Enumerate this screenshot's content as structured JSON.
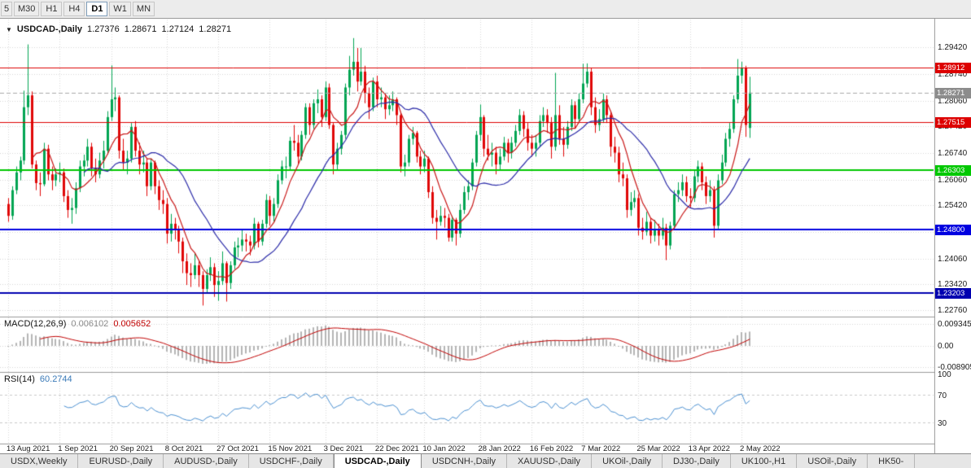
{
  "toolbar": {
    "timeframes": [
      "5",
      "M30",
      "H1",
      "H4",
      "D1",
      "W1",
      "MN"
    ],
    "active": "D1"
  },
  "chart_data": {
    "type": "candlestick",
    "title": "USDCAD-,Daily",
    "ohlc_header": {
      "open": "1.27376",
      "high": "1.28671",
      "low": "1.27124",
      "close": "1.28271"
    },
    "y_range": {
      "top": 1.3012,
      "bottom": 1.2262
    },
    "price_axis": [
      {
        "text": "1.29420",
        "v": 1.2942
      },
      {
        "text": "1.28740",
        "v": 1.2874
      },
      {
        "text": "1.28060",
        "v": 1.2806
      },
      {
        "text": "1.27420",
        "v": 1.2742
      },
      {
        "text": "1.26740",
        "v": 1.2674
      },
      {
        "text": "1.26060",
        "v": 1.2606
      },
      {
        "text": "1.25420",
        "v": 1.2542
      },
      {
        "text": "1.24740",
        "v": 1.2474
      },
      {
        "text": "1.24060",
        "v": 1.2406
      },
      {
        "text": "1.23420",
        "v": 1.2342
      },
      {
        "text": "1.22760",
        "v": 1.2276
      }
    ],
    "x_labels": [
      {
        "text": "13 Aug 2021",
        "i": 0
      },
      {
        "text": "1 Sep 2021",
        "i": 13
      },
      {
        "text": "20 Sep 2021",
        "i": 26
      },
      {
        "text": "8 Oct 2021",
        "i": 40
      },
      {
        "text": "27 Oct 2021",
        "i": 53
      },
      {
        "text": "15 Nov 2021",
        "i": 66
      },
      {
        "text": "3 Dec 2021",
        "i": 80
      },
      {
        "text": "22 Dec 2021",
        "i": 93
      },
      {
        "text": "10 Jan 2022",
        "i": 105
      },
      {
        "text": "28 Jan 2022",
        "i": 119
      },
      {
        "text": "16 Feb 2022",
        "i": 132
      },
      {
        "text": "7 Mar 2022",
        "i": 145
      },
      {
        "text": "25 Mar 2022",
        "i": 159
      },
      {
        "text": "13 Apr 2022",
        "i": 172
      },
      {
        "text": "2 May 2022",
        "i": 185
      }
    ],
    "horizontal_levels": [
      {
        "price": 1.28912,
        "label": "1.28912",
        "color": "#dd0000",
        "width": 1
      },
      {
        "price": 1.27515,
        "label": "1.27515",
        "color": "#dd0000",
        "width": 1
      },
      {
        "price": 1.26303,
        "label": "1.26303",
        "color": "#00c800",
        "width": 2
      },
      {
        "price": 1.248,
        "label": "1.24800",
        "color": "#0000e0",
        "width": 2
      },
      {
        "price": 1.23203,
        "label": "1.23203",
        "color": "#0000b0",
        "width": 2
      }
    ],
    "current_price": {
      "v": 1.28271,
      "label": "1.28271",
      "color": "#8c8c8c"
    },
    "moving_averages": [
      {
        "period": 7,
        "color": "#c81616"
      },
      {
        "period": 20,
        "color": "#2b2ba8"
      }
    ],
    "colors": {
      "bull": "#00a452",
      "bear": "#e00707",
      "grid": "#d6d6d6",
      "axis_line": "#9a9a9a"
    },
    "candles": [
      [
        1.2545,
        1.256,
        1.25,
        1.2515
      ],
      [
        1.2515,
        1.259,
        1.2505,
        1.258
      ],
      [
        1.258,
        1.264,
        1.257,
        1.2625
      ],
      [
        1.2625,
        1.2665,
        1.2605,
        1.2655
      ],
      [
        1.2655,
        1.2832,
        1.2645,
        1.279
      ],
      [
        1.279,
        1.2949,
        1.277,
        1.282
      ],
      [
        1.282,
        1.283,
        1.2635,
        1.2645
      ],
      [
        1.2645,
        1.2655,
        1.258,
        1.2598
      ],
      [
        1.2598,
        1.2625,
        1.2565,
        1.2595
      ],
      [
        1.2595,
        1.27,
        1.259,
        1.2685
      ],
      [
        1.2685,
        1.2695,
        1.2605,
        1.262
      ],
      [
        1.262,
        1.264,
        1.258,
        1.2605
      ],
      [
        1.2605,
        1.2635,
        1.259,
        1.262
      ],
      [
        1.262,
        1.265,
        1.26,
        1.2625
      ],
      [
        1.2625,
        1.2635,
        1.255,
        1.2565
      ],
      [
        1.2565,
        1.258,
        1.251,
        1.253
      ],
      [
        1.253,
        1.256,
        1.2495,
        1.2535
      ],
      [
        1.2535,
        1.26,
        1.252,
        1.2585
      ],
      [
        1.2585,
        1.2655,
        1.2575,
        1.264
      ],
      [
        1.264,
        1.267,
        1.2615,
        1.2655
      ],
      [
        1.2655,
        1.271,
        1.264,
        1.269
      ],
      [
        1.269,
        1.27,
        1.2615,
        1.2635
      ],
      [
        1.2635,
        1.266,
        1.26,
        1.262
      ],
      [
        1.262,
        1.2675,
        1.261,
        1.2655
      ],
      [
        1.2655,
        1.2705,
        1.2635,
        1.268
      ],
      [
        1.268,
        1.278,
        1.267,
        1.2765
      ],
      [
        1.2765,
        1.2896,
        1.2755,
        1.281
      ],
      [
        1.281,
        1.284,
        1.278,
        1.2815
      ],
      [
        1.2815,
        1.282,
        1.266,
        1.268
      ],
      [
        1.268,
        1.271,
        1.263,
        1.265
      ],
      [
        1.265,
        1.268,
        1.262,
        1.266
      ],
      [
        1.266,
        1.275,
        1.265,
        1.274
      ],
      [
        1.274,
        1.2755,
        1.2665,
        1.268
      ],
      [
        1.268,
        1.27,
        1.262,
        1.2645
      ],
      [
        1.2645,
        1.268,
        1.2625,
        1.265
      ],
      [
        1.265,
        1.266,
        1.2565,
        1.259
      ],
      [
        1.259,
        1.266,
        1.258,
        1.265
      ],
      [
        1.265,
        1.2655,
        1.257,
        1.259
      ],
      [
        1.259,
        1.2605,
        1.253,
        1.2555
      ],
      [
        1.2555,
        1.258,
        1.252,
        1.2545
      ],
      [
        1.2545,
        1.256,
        1.2445,
        1.247
      ],
      [
        1.247,
        1.252,
        1.245,
        1.2495
      ],
      [
        1.2495,
        1.251,
        1.2455,
        1.248
      ],
      [
        1.248,
        1.249,
        1.242,
        1.245
      ],
      [
        1.245,
        1.246,
        1.237,
        1.24
      ],
      [
        1.24,
        1.242,
        1.234,
        1.237
      ],
      [
        1.237,
        1.2395,
        1.2335,
        1.2365
      ],
      [
        1.2365,
        1.242,
        1.2355,
        1.239
      ],
      [
        1.239,
        1.24,
        1.2335,
        1.2365
      ],
      [
        1.2365,
        1.2375,
        1.2288,
        1.233
      ],
      [
        1.233,
        1.238,
        1.232,
        1.2365
      ],
      [
        1.2365,
        1.241,
        1.235,
        1.2385
      ],
      [
        1.2385,
        1.2395,
        1.231,
        1.234
      ],
      [
        1.234,
        1.2375,
        1.23,
        1.235
      ],
      [
        1.235,
        1.2425,
        1.234,
        1.2395
      ],
      [
        1.2395,
        1.24,
        1.2298,
        1.2345
      ],
      [
        1.2345,
        1.24,
        1.233,
        1.239
      ],
      [
        1.239,
        1.245,
        1.238,
        1.2435
      ],
      [
        1.2435,
        1.246,
        1.241,
        1.244
      ],
      [
        1.244,
        1.248,
        1.2425,
        1.2455
      ],
      [
        1.2455,
        1.247,
        1.2425,
        1.245
      ],
      [
        1.245,
        1.2465,
        1.2415,
        1.244
      ],
      [
        1.244,
        1.251,
        1.243,
        1.2495
      ],
      [
        1.2495,
        1.25,
        1.2435,
        1.245
      ],
      [
        1.245,
        1.2505,
        1.244,
        1.2495
      ],
      [
        1.2495,
        1.257,
        1.2485,
        1.2555
      ],
      [
        1.2555,
        1.2565,
        1.249,
        1.2515
      ],
      [
        1.2515,
        1.256,
        1.25,
        1.2545
      ],
      [
        1.2545,
        1.262,
        1.2535,
        1.2605
      ],
      [
        1.2605,
        1.2655,
        1.2595,
        1.264
      ],
      [
        1.264,
        1.2665,
        1.261,
        1.264
      ],
      [
        1.264,
        1.2715,
        1.263,
        1.2705
      ],
      [
        1.2705,
        1.2745,
        1.268,
        1.27
      ],
      [
        1.27,
        1.272,
        1.2645,
        1.2665
      ],
      [
        1.2665,
        1.273,
        1.2655,
        1.272
      ],
      [
        1.272,
        1.28,
        1.271,
        1.279
      ],
      [
        1.279,
        1.28,
        1.272,
        1.2745
      ],
      [
        1.2745,
        1.281,
        1.2735,
        1.28
      ],
      [
        1.28,
        1.2835,
        1.2775,
        1.281
      ],
      [
        1.281,
        1.282,
        1.274,
        1.2765
      ],
      [
        1.2765,
        1.2855,
        1.2755,
        1.284
      ],
      [
        1.284,
        1.285,
        1.2735,
        1.2745
      ],
      [
        1.2745,
        1.275,
        1.262,
        1.2645
      ],
      [
        1.2645,
        1.27,
        1.263,
        1.2685
      ],
      [
        1.2685,
        1.273,
        1.267,
        1.272
      ],
      [
        1.272,
        1.285,
        1.271,
        1.284
      ],
      [
        1.284,
        1.292,
        1.282,
        1.2885
      ],
      [
        1.2885,
        1.2965,
        1.287,
        1.2905
      ],
      [
        1.2905,
        1.294,
        1.283,
        1.2855
      ],
      [
        1.2855,
        1.294,
        1.2845,
        1.288
      ],
      [
        1.288,
        1.2895,
        1.28,
        1.2825
      ],
      [
        1.2825,
        1.284,
        1.276,
        1.279
      ],
      [
        1.279,
        1.2865,
        1.278,
        1.2855
      ],
      [
        1.2855,
        1.287,
        1.279,
        1.281
      ],
      [
        1.281,
        1.284,
        1.279,
        1.2815
      ],
      [
        1.2815,
        1.2825,
        1.276,
        1.2785
      ],
      [
        1.2785,
        1.282,
        1.277,
        1.2795
      ],
      [
        1.2795,
        1.283,
        1.278,
        1.281
      ],
      [
        1.281,
        1.2815,
        1.2745,
        1.277
      ],
      [
        1.277,
        1.2775,
        1.2625,
        1.264
      ],
      [
        1.264,
        1.267,
        1.2615,
        1.265
      ],
      [
        1.265,
        1.272,
        1.264,
        1.271
      ],
      [
        1.271,
        1.274,
        1.2695,
        1.2725
      ],
      [
        1.2725,
        1.273,
        1.265,
        1.2665
      ],
      [
        1.2665,
        1.268,
        1.262,
        1.264
      ],
      [
        1.264,
        1.268,
        1.2625,
        1.266
      ],
      [
        1.266,
        1.2665,
        1.256,
        1.2575
      ],
      [
        1.2575,
        1.259,
        1.2495,
        1.251
      ],
      [
        1.251,
        1.253,
        1.2455,
        1.25
      ],
      [
        1.25,
        1.254,
        1.249,
        1.2515
      ],
      [
        1.2515,
        1.2535,
        1.2485,
        1.251
      ],
      [
        1.251,
        1.252,
        1.245,
        1.246
      ],
      [
        1.246,
        1.2515,
        1.245,
        1.2505
      ],
      [
        1.2505,
        1.251,
        1.244,
        1.247
      ],
      [
        1.247,
        1.2545,
        1.246,
        1.253
      ],
      [
        1.253,
        1.259,
        1.252,
        1.2575
      ],
      [
        1.2575,
        1.2605,
        1.2555,
        1.259
      ],
      [
        1.259,
        1.266,
        1.258,
        1.265
      ],
      [
        1.265,
        1.273,
        1.264,
        1.272
      ],
      [
        1.272,
        1.2797,
        1.2705,
        1.2765
      ],
      [
        1.2765,
        1.277,
        1.2665,
        1.2685
      ],
      [
        1.2685,
        1.272,
        1.2655,
        1.267
      ],
      [
        1.267,
        1.27,
        1.264,
        1.2675
      ],
      [
        1.2675,
        1.269,
        1.262,
        1.2645
      ],
      [
        1.2645,
        1.2685,
        1.263,
        1.2665
      ],
      [
        1.2665,
        1.2715,
        1.2655,
        1.27
      ],
      [
        1.27,
        1.271,
        1.265,
        1.2675
      ],
      [
        1.2675,
        1.2715,
        1.266,
        1.27
      ],
      [
        1.27,
        1.2745,
        1.269,
        1.273
      ],
      [
        1.273,
        1.2785,
        1.272,
        1.277
      ],
      [
        1.277,
        1.278,
        1.2715,
        1.2735
      ],
      [
        1.2735,
        1.275,
        1.268,
        1.27
      ],
      [
        1.27,
        1.272,
        1.2665,
        1.2685
      ],
      [
        1.2685,
        1.272,
        1.2665,
        1.27
      ],
      [
        1.27,
        1.277,
        1.269,
        1.2755
      ],
      [
        1.2755,
        1.279,
        1.274,
        1.277
      ],
      [
        1.277,
        1.2785,
        1.2725,
        1.275
      ],
      [
        1.275,
        1.2765,
        1.266,
        1.269
      ],
      [
        1.269,
        1.2877,
        1.268,
        1.277
      ],
      [
        1.277,
        1.2795,
        1.2695,
        1.271
      ],
      [
        1.271,
        1.274,
        1.2665,
        1.2695
      ],
      [
        1.2695,
        1.2755,
        1.2685,
        1.274
      ],
      [
        1.274,
        1.281,
        1.273,
        1.2795
      ],
      [
        1.2795,
        1.2805,
        1.2735,
        1.276
      ],
      [
        1.276,
        1.2825,
        1.275,
        1.281
      ],
      [
        1.281,
        1.29,
        1.28,
        1.285
      ],
      [
        1.285,
        1.2901,
        1.284,
        1.288
      ],
      [
        1.288,
        1.289,
        1.277,
        1.279
      ],
      [
        1.279,
        1.2815,
        1.2725,
        1.2745
      ],
      [
        1.2745,
        1.2785,
        1.273,
        1.276
      ],
      [
        1.276,
        1.2825,
        1.275,
        1.281
      ],
      [
        1.281,
        1.282,
        1.275,
        1.277
      ],
      [
        1.277,
        1.278,
        1.2665,
        1.269
      ],
      [
        1.269,
        1.2715,
        1.265,
        1.2675
      ],
      [
        1.2675,
        1.269,
        1.26,
        1.262
      ],
      [
        1.262,
        1.265,
        1.259,
        1.261
      ],
      [
        1.261,
        1.262,
        1.251,
        1.253
      ],
      [
        1.253,
        1.2575,
        1.2515,
        1.255
      ],
      [
        1.255,
        1.258,
        1.2535,
        1.256
      ],
      [
        1.256,
        1.257,
        1.2465,
        1.2485
      ],
      [
        1.2485,
        1.251,
        1.2455,
        1.2475
      ],
      [
        1.2475,
        1.2525,
        1.2465,
        1.25
      ],
      [
        1.25,
        1.251,
        1.2445,
        1.2465
      ],
      [
        1.2465,
        1.2505,
        1.245,
        1.248
      ],
      [
        1.248,
        1.2495,
        1.244,
        1.2465
      ],
      [
        1.2465,
        1.251,
        1.2455,
        1.2485
      ],
      [
        1.2485,
        1.2495,
        1.2403,
        1.244
      ],
      [
        1.244,
        1.25,
        1.243,
        1.249
      ],
      [
        1.249,
        1.258,
        1.248,
        1.257
      ],
      [
        1.257,
        1.26,
        1.255,
        1.258
      ],
      [
        1.258,
        1.262,
        1.2565,
        1.26
      ],
      [
        1.26,
        1.2615,
        1.255,
        1.2565
      ],
      [
        1.2565,
        1.2585,
        1.2535,
        1.256
      ],
      [
        1.256,
        1.263,
        1.255,
        1.2615
      ],
      [
        1.2615,
        1.2655,
        1.26,
        1.264
      ],
      [
        1.264,
        1.265,
        1.258,
        1.26
      ],
      [
        1.26,
        1.2615,
        1.2545,
        1.2565
      ],
      [
        1.2565,
        1.2605,
        1.255,
        1.258
      ],
      [
        1.258,
        1.259,
        1.246,
        1.249
      ],
      [
        1.249,
        1.262,
        1.248,
        1.2605
      ],
      [
        1.2605,
        1.267,
        1.2595,
        1.265
      ],
      [
        1.265,
        1.2725,
        1.264,
        1.271
      ],
      [
        1.271,
        1.275,
        1.269,
        1.2735
      ],
      [
        1.2735,
        1.282,
        1.2725,
        1.281
      ],
      [
        1.281,
        1.2912,
        1.28,
        1.287
      ],
      [
        1.287,
        1.2905,
        1.285,
        1.289
      ],
      [
        1.289,
        1.2895,
        1.2715,
        1.2745
      ],
      [
        1.27376,
        1.28671,
        1.27124,
        1.28271
      ]
    ],
    "macd": {
      "label": "MACD(12,26,9)",
      "value_main": "0.006102",
      "value_signal": "0.005652",
      "fast": 12,
      "slow": 26,
      "signal": 9,
      "axis": [
        {
          "text": "0.009345",
          "v": 0.009345
        },
        {
          "text": "0.00",
          "v": 0
        },
        {
          "text": "-0.008905",
          "v": -0.008905
        }
      ],
      "range": {
        "top": 0.0118,
        "bottom": -0.0108
      },
      "hist_color": "#b4b4b4",
      "signal_color": "#c00000"
    },
    "rsi": {
      "label": "RSI(14)",
      "value": "60.2744",
      "period": 14,
      "axis": [
        {
          "text": "100",
          "v": 100
        },
        {
          "text": "70",
          "v": 70
        },
        {
          "text": "30",
          "v": 30
        }
      ],
      "levels": [
        70,
        30
      ],
      "color": "#4a8fd0"
    }
  },
  "tabs": {
    "items": [
      "USDX,Weekly",
      "EURUSD-,Daily",
      "AUDUSD-,Daily",
      "USDCHF-,Daily",
      "USDCAD-,Daily",
      "USDCNH-,Daily",
      "XAUUSD-,Daily",
      "UKOil-,Daily",
      "DJ30-,Daily",
      "UK100-,H1",
      "USOil-,Daily",
      "HK50-"
    ],
    "active": "USDCAD-,Daily"
  }
}
